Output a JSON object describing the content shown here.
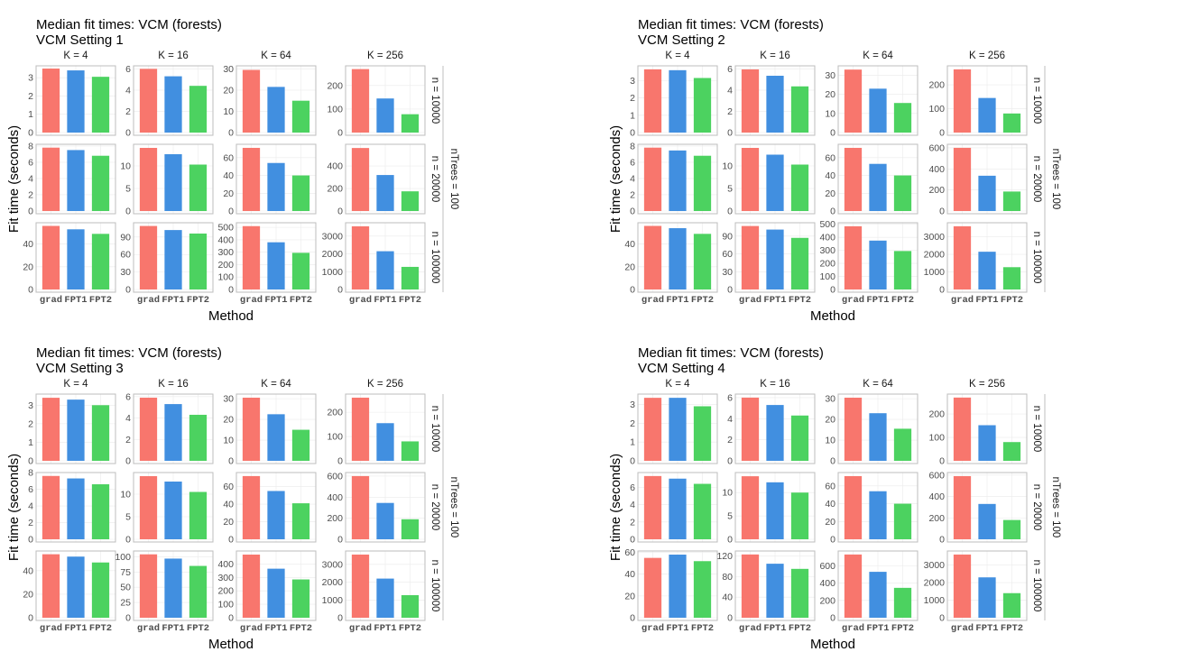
{
  "chart_data": [
    {
      "type": "bar",
      "title": "Median fit times: VCM (forests)",
      "subtitle": "VCM Setting 1",
      "xlabel": "Method",
      "ylabel": "Fit time (seconds)",
      "categories": [
        "grad",
        "FPT1",
        "FPT2"
      ],
      "colors": [
        "#F8766D",
        "#418FE0",
        "#4CD260"
      ],
      "col_labels": [
        "K = 4",
        "K = 16",
        "K = 64",
        "K = 256"
      ],
      "row_labels": [
        "n = 10000",
        "n = 20000",
        "n = 100000"
      ],
      "row_group_label": "nTrees = 100",
      "grid": true,
      "panels": [
        [
          {
            "ylim": [
              0,
              3.6
            ],
            "yticks": [
              0,
              1,
              2,
              3
            ],
            "values": [
              3.5,
              3.4,
              3.05
            ]
          },
          {
            "ylim": [
              0,
              6.2
            ],
            "yticks": [
              0,
              2,
              4,
              6
            ],
            "values": [
              6.0,
              5.3,
              4.4
            ]
          },
          {
            "ylim": [
              0,
              31
            ],
            "yticks": [
              0,
              10,
              20,
              30
            ],
            "values": [
              29.5,
              21.5,
              15
            ]
          },
          {
            "ylim": [
              0,
              280
            ],
            "yticks": [
              0,
              100,
              200
            ],
            "values": [
              270,
              145,
              78
            ]
          }
        ],
        [
          {
            "ylim": [
              0,
              8.1
            ],
            "yticks": [
              0,
              2,
              4,
              6,
              8
            ],
            "values": [
              7.8,
              7.5,
              6.8
            ]
          },
          {
            "ylim": [
              0,
              14.6
            ],
            "yticks": [
              0,
              5,
              10
            ],
            "values": [
              14.0,
              12.6,
              10.3
            ]
          },
          {
            "ylim": [
              0,
              74
            ],
            "yticks": [
              0,
              20,
              40,
              60
            ],
            "values": [
              71,
              54,
              40
            ]
          },
          {
            "ylim": [
              0,
              585
            ],
            "yticks": [
              0,
              200,
              400
            ],
            "values": [
              560,
              320,
              175
            ]
          }
        ],
        [
          {
            "ylim": [
              0,
              58
            ],
            "yticks": [
              0,
              20,
              40
            ],
            "values": [
              56,
              53,
              49
            ]
          },
          {
            "ylim": [
              0,
              113
            ],
            "yticks": [
              0,
              30,
              60,
              90
            ],
            "values": [
              109,
              102,
              96
            ]
          },
          {
            "ylim": [
              0,
              530
            ],
            "yticks": [
              0,
              100,
              200,
              300,
              400,
              500
            ],
            "values": [
              510,
              380,
              295
            ]
          },
          {
            "ylim": [
              0,
              3700
            ],
            "yticks": [
              0,
              1000,
              2000,
              3000
            ],
            "values": [
              3550,
              2150,
              1270
            ]
          }
        ]
      ]
    },
    {
      "type": "bar",
      "title": "Median fit times: VCM (forests)",
      "subtitle": "VCM Setting 2",
      "xlabel": "Method",
      "ylabel": "Fit time (seconds)",
      "categories": [
        "grad",
        "FPT1",
        "FPT2"
      ],
      "colors": [
        "#F8766D",
        "#418FE0",
        "#4CD260"
      ],
      "col_labels": [
        "K = 4",
        "K = 16",
        "K = 64",
        "K = 256"
      ],
      "row_labels": [
        "n = 10000",
        "n = 20000",
        "n = 100000"
      ],
      "row_group_label": "nTrees = 100",
      "grid": true,
      "panels": [
        [
          {
            "ylim": [
              0,
              3.8
            ],
            "yticks": [
              0,
              1,
              2,
              3
            ],
            "values": [
              3.65,
              3.6,
              3.15
            ]
          },
          {
            "ylim": [
              0,
              6.2
            ],
            "yticks": [
              0,
              2,
              4,
              6
            ],
            "values": [
              5.95,
              5.35,
              4.35
            ]
          },
          {
            "ylim": [
              0,
              34.5
            ],
            "yticks": [
              0,
              10,
              20,
              30
            ],
            "values": [
              33,
              23,
              15.5
            ]
          },
          {
            "ylim": [
              0,
              276
            ],
            "yticks": [
              0,
              100,
              200
            ],
            "values": [
              265,
              145,
              80
            ]
          }
        ],
        [
          {
            "ylim": [
              0,
              8.1
            ],
            "yticks": [
              0,
              2,
              4,
              6,
              8
            ],
            "values": [
              7.8,
              7.45,
              6.8
            ]
          },
          {
            "ylim": [
              0,
              14.6
            ],
            "yticks": [
              0,
              5,
              10
            ],
            "values": [
              14.0,
              12.5,
              10.3
            ]
          },
          {
            "ylim": [
              0,
              74
            ],
            "yticks": [
              0,
              20,
              40,
              60
            ],
            "values": [
              71,
              53,
              40
            ]
          },
          {
            "ylim": [
              0,
              625
            ],
            "yticks": [
              0,
              200,
              400,
              600
            ],
            "values": [
              600,
              335,
              185
            ]
          }
        ],
        [
          {
            "ylim": [
              0,
              58
            ],
            "yticks": [
              0,
              20,
              40
            ],
            "values": [
              56,
              54,
              49
            ]
          },
          {
            "ylim": [
              0,
              111
            ],
            "yticks": [
              0,
              30,
              60,
              90
            ],
            "values": [
              107,
              101,
              87
            ]
          },
          {
            "ylim": [
              0,
              505
            ],
            "yticks": [
              0,
              100,
              200,
              300,
              400,
              500
            ],
            "values": [
              485,
              375,
              295
            ]
          },
          {
            "ylim": [
              0,
              3750
            ],
            "yticks": [
              0,
              1000,
              2000,
              3000
            ],
            "values": [
              3600,
              2150,
              1270
            ]
          }
        ]
      ]
    },
    {
      "type": "bar",
      "title": "Median fit times: VCM (forests)",
      "subtitle": "VCM Setting 3",
      "xlabel": "Method",
      "ylabel": "Fit time (seconds)",
      "categories": [
        "grad",
        "FPT1",
        "FPT2"
      ],
      "colors": [
        "#F8766D",
        "#418FE0",
        "#4CD260"
      ],
      "col_labels": [
        "K = 4",
        "K = 16",
        "K = 64",
        "K = 256"
      ],
      "row_labels": [
        "n = 10000",
        "n = 20000",
        "n = 100000"
      ],
      "row_group_label": "nTrees = 100",
      "grid": true,
      "panels": [
        [
          {
            "ylim": [
              0,
              3.55
            ],
            "yticks": [
              0,
              1,
              2,
              3
            ],
            "values": [
              3.4,
              3.3,
              3.0
            ]
          },
          {
            "ylim": [
              0,
              6.15
            ],
            "yticks": [
              0,
              2,
              4,
              6
            ],
            "values": [
              5.9,
              5.3,
              4.3
            ]
          },
          {
            "ylim": [
              0,
              31.8
            ],
            "yticks": [
              0,
              10,
              20,
              30
            ],
            "values": [
              30.5,
              22.5,
              15
            ]
          },
          {
            "ylim": [
              0,
              271
            ],
            "yticks": [
              0,
              100,
              200
            ],
            "values": [
              260,
              155,
              80
            ]
          }
        ],
        [
          {
            "ylim": [
              0,
              7.9
            ],
            "yticks": [
              0,
              2,
              4,
              6,
              8
            ],
            "values": [
              7.6,
              7.3,
              6.6
            ]
          },
          {
            "ylim": [
              0,
              14.6
            ],
            "yticks": [
              0,
              5,
              10
            ],
            "values": [
              14.0,
              12.8,
              10.5
            ]
          },
          {
            "ylim": [
              0,
              75
            ],
            "yticks": [
              0,
              20,
              40,
              60
            ],
            "values": [
              72,
              55,
              41
            ]
          },
          {
            "ylim": [
              0,
              625
            ],
            "yticks": [
              0,
              200,
              400,
              600
            ],
            "values": [
              600,
              345,
              190
            ]
          }
        ],
        [
          {
            "ylim": [
              0,
              56
            ],
            "yticks": [
              0,
              20,
              40
            ],
            "values": [
              54,
              52,
              47
            ]
          },
          {
            "ylim": [
              0,
              108
            ],
            "yticks": [
              0,
              25,
              50,
              75,
              100
            ],
            "values": [
              104,
              97,
              85
            ]
          },
          {
            "ylim": [
              0,
              490
            ],
            "yticks": [
              0,
              100,
              200,
              300,
              400
            ],
            "values": [
              470,
              365,
              285
            ]
          },
          {
            "ylim": [
              0,
              3700
            ],
            "yticks": [
              0,
              1000,
              2000,
              3000
            ],
            "values": [
              3550,
              2200,
              1270
            ]
          }
        ]
      ]
    },
    {
      "type": "bar",
      "title": "Median fit times: VCM (forests)",
      "subtitle": "VCM Setting 4",
      "xlabel": "Method",
      "ylabel": "Fit time (seconds)",
      "categories": [
        "grad",
        "FPT1",
        "FPT2"
      ],
      "colors": [
        "#F8766D",
        "#418FE0",
        "#4CD260"
      ],
      "col_labels": [
        "K = 4",
        "K = 16",
        "K = 64",
        "K = 256"
      ],
      "row_labels": [
        "n = 10000",
        "n = 20000",
        "n = 100000"
      ],
      "row_group_label": "nTrees = 100",
      "grid": true,
      "panels": [
        [
          {
            "ylim": [
              0,
              3.5
            ],
            "yticks": [
              0,
              1,
              2,
              3
            ],
            "values": [
              3.35,
              3.35,
              2.9
            ]
          },
          {
            "ylim": [
              0,
              6.25
            ],
            "yticks": [
              0,
              2,
              4,
              6
            ],
            "values": [
              6.0,
              5.3,
              4.3
            ]
          },
          {
            "ylim": [
              0,
              31.8
            ],
            "yticks": [
              0,
              10,
              20,
              30
            ],
            "values": [
              30.5,
              23,
              15.5
            ]
          },
          {
            "ylim": [
              0,
              281
            ],
            "yticks": [
              0,
              100,
              200
            ],
            "values": [
              270,
              152,
              80
            ]
          }
        ],
        [
          {
            "ylim": [
              0,
              7.6
            ],
            "yticks": [
              0,
              2,
              4,
              6
            ],
            "values": [
              7.3,
              7.0,
              6.4
            ]
          },
          {
            "ylim": [
              0,
              14.1
            ],
            "yticks": [
              0,
              5,
              10
            ],
            "values": [
              13.5,
              12.2,
              10.0
            ]
          },
          {
            "ylim": [
              0,
              74
            ],
            "yticks": [
              0,
              20,
              40,
              60
            ],
            "values": [
              71,
              54,
              40
            ]
          },
          {
            "ylim": [
              0,
              615
            ],
            "yticks": [
              0,
              200,
              400,
              600
            ],
            "values": [
              590,
              330,
              180
            ]
          }
        ],
        [
          {
            "ylim": [
              0,
              60.5
            ],
            "yticks": [
              0,
              20,
              40,
              60
            ],
            "values": [
              55,
              58,
              52
            ]
          },
          {
            "ylim": [
              0,
              128
            ],
            "yticks": [
              0,
              40,
              80,
              120
            ],
            "values": [
              123,
              105,
              95
            ]
          },
          {
            "ylim": [
              0,
              760
            ],
            "yticks": [
              0,
              200,
              400,
              600
            ],
            "values": [
              730,
              530,
              345
            ]
          },
          {
            "ylim": [
              0,
              3750
            ],
            "yticks": [
              0,
              1000,
              2000,
              3000
            ],
            "values": [
              3600,
              2300,
              1400
            ]
          }
        ]
      ]
    }
  ]
}
